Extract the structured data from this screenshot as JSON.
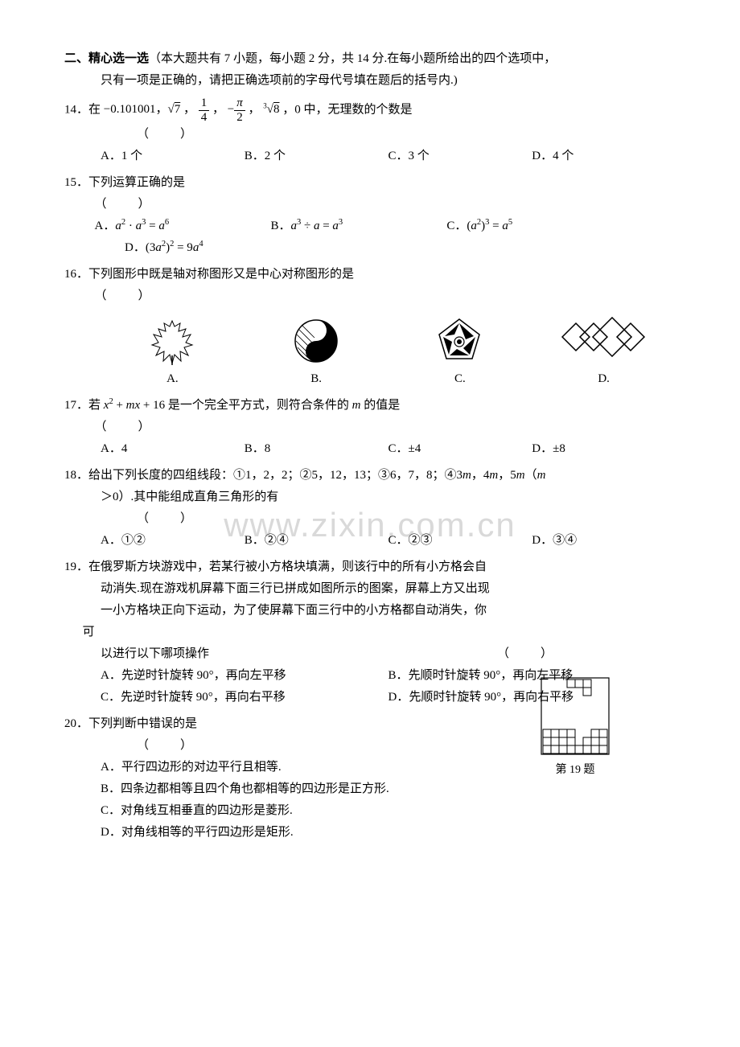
{
  "watermark": "www.zixin.com.cn",
  "section": {
    "title": "二、精心选一选",
    "desc": "（本大题共有 7 小题，每小题 2 分，共 14 分.在每小题所给出的四个选项中，",
    "desc2": "只有一项是正确的，请把正确选项前的字母代号填在题后的括号内.)"
  },
  "q14": {
    "num": "14．",
    "stem_a": "在",
    "stem_b": "，0 中，无理数的个数是",
    "paren": "（　　）",
    "A": "A．1 个",
    "B": "B．2 个",
    "C": "C．3 个",
    "D": "D．4 个"
  },
  "q15": {
    "num": "15．",
    "stem": "下列运算正确的是",
    "paren": "（　　）",
    "A_pre": "A．",
    "B_pre": "B．",
    "C_pre": "C．",
    "D_pre": "D．"
  },
  "q16": {
    "num": "16．",
    "stem": "下列图形中既是轴对称图形又是中心对称图形的是",
    "paren": "（　　）",
    "A": "A.",
    "B": "B.",
    "C": "C.",
    "D": "D.",
    "colors": {
      "stroke": "#000000",
      "fill": "#ffffff"
    }
  },
  "q17": {
    "num": "17．",
    "stem_a": "若",
    "stem_b": "是一个完全平方式，则符合条件的",
    "stem_c": "的值是",
    "paren": "（　　）",
    "A": "A．4",
    "B": "B．8",
    "C": "C．±4",
    "D": "D．±8"
  },
  "q18": {
    "num": "18．",
    "stem_a": "给出下列长度的四组线段：①1，2，2；②5，12，13；③6，7，8；④3",
    "stem_b": "，4",
    "stem_c": "，5",
    "stem_d": "（",
    "stem2": "＞0）.其中能组成直角三角形的有",
    "paren": "（　　）",
    "A": "A．①②",
    "B": "B．②④",
    "C": "C．②③",
    "D": "D．③④"
  },
  "q19": {
    "num": "19．",
    "line1": "在俄罗斯方块游戏中，若某行被小方格块填满，则该行中的所有小方格会自",
    "line2": "动消失.现在游戏机屏幕下面三行已拼成如图所示的图案，屏幕上方又出现",
    "line3": "一小方格块正向下运动，为了使屏幕下面三行中的小方格都自动消失，你",
    "line3b": "可",
    "line4": "以进行以下哪项操作",
    "paren": "（　　）",
    "A": "A．先逆时针旋转 90°，再向左平移",
    "B": "B．先顺时针旋转 90°，再向左平移",
    "C": "C．先逆时针旋转 90°，再向右平移",
    "D": "D．先顺时针旋转 90°，再向右平移",
    "figlabel": "第 19 题",
    "tetris": {
      "cols": 8,
      "rows_bottom": 3,
      "piece_top": [
        [
          3,
          0
        ],
        [
          4,
          0
        ],
        [
          5,
          0
        ],
        [
          5,
          1
        ]
      ],
      "empty_bottom": [
        [
          4,
          0
        ],
        [
          4,
          1
        ],
        [
          5,
          0
        ]
      ],
      "cell": 10,
      "stroke": "#000000"
    }
  },
  "q20": {
    "num": "20．",
    "stem": "下列判断中错误的是",
    "paren": "（　　）",
    "A": "A．平行四边形的对边平行且相等.",
    "B": "B．四条边都相等且四个角也都相等的四边形是正方形.",
    "C": "C．对角线互相垂直的四边形是菱形.",
    "D": "D．对角线相等的平行四边形是矩形."
  }
}
